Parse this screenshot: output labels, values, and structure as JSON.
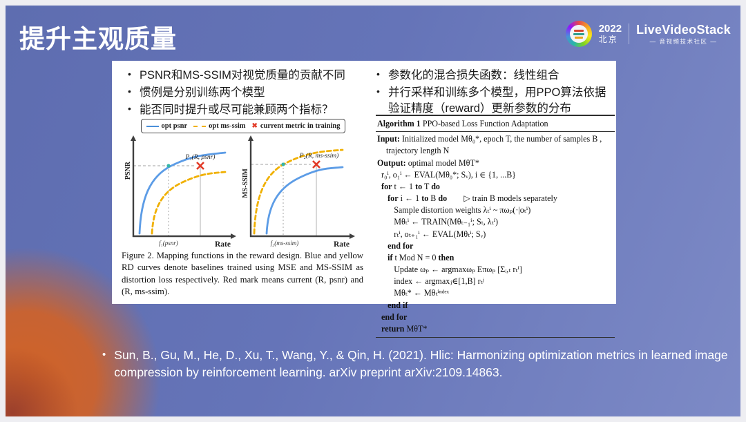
{
  "slide": {
    "title": "提升主观质量",
    "brand": {
      "year": "2022",
      "city": "北京",
      "wordmark": "LiveVideoStack",
      "tagline": "— 音视频技术社区 —"
    }
  },
  "left_panel": {
    "bullets": [
      "PSNR和MS-SSIM对视觉质量的贡献不同",
      "惯例是分别训练两个模型",
      "能否同时提升或尽可能兼顾两个指标？"
    ]
  },
  "right_panel": {
    "bullets": [
      "参数化的混合损失函数：线性组合",
      "并行采样和训练多个模型，用PPO算法依据验证精度（reward）更新参数的分布"
    ]
  },
  "figure": {
    "legend": {
      "opt_psnr": "opt psnr",
      "opt_ms_ssim": "opt ms-ssim",
      "current": "current metric in training"
    },
    "left_chart": {
      "ylabel": "PSNR",
      "xlabel": "Rate",
      "point_label": "P₁(R, psnr)",
      "tick_label": "f₁(psnr)"
    },
    "right_chart": {
      "ylabel": "MS-SSIM",
      "xlabel": "Rate",
      "point_label": "P₂(R, ms-ssim)",
      "tick_label": "f₂(ms-ssim)"
    },
    "caption": "Figure 2.  Mapping functions in the reward design. Blue and yellow RD curves denote baselines trained using MSE and MS-SSIM as distortion loss respectively. Red mark means current (R, psnr) and (R, ms-ssim).",
    "colors": {
      "blue_curve": "#5c9ce6",
      "yellow_curve": "#f0b000",
      "red_mark": "#e23b28",
      "teal_dot": "#35b5a9"
    },
    "chart_data": [
      {
        "type": "line",
        "title": "Reward mapping — PSNR vs Rate",
        "xlabel": "Rate",
        "ylabel": "PSNR",
        "series": [
          {
            "name": "opt psnr",
            "style": "solid blue",
            "shape": "concave rising, upper curve"
          },
          {
            "name": "opt ms-ssim",
            "style": "dashed yellow",
            "shape": "concave rising, lower curve"
          }
        ],
        "annotations": [
          "red cross at P₁(R, psnr)",
          "dashed guide to f₁(psnr) on Rate axis",
          "teal dot at intersection with blue curve"
        ],
        "axes_numeric": false
      },
      {
        "type": "line",
        "title": "Reward mapping — MS-SSIM vs Rate",
        "xlabel": "Rate",
        "ylabel": "MS-SSIM",
        "series": [
          {
            "name": "opt ms-ssim",
            "style": "dashed yellow",
            "shape": "concave rising, upper curve"
          },
          {
            "name": "opt psnr",
            "style": "solid blue",
            "shape": "concave rising, lower curve"
          }
        ],
        "annotations": [
          "red cross at P₂(R, ms-ssim)",
          "dashed guide to f₂(ms-ssim) on Rate axis",
          "teal dot at intersection with yellow curve"
        ],
        "axes_numeric": false
      }
    ]
  },
  "algorithm": {
    "title": "**Algorithm 1** PPO-based Loss Function Adaptation",
    "input": "**Input:** Initialized model Mθ₀*, epoch T, the number of samples B , trajectory length N",
    "output": "**Output:** optimal model MθT*",
    "lines": [
      "  r₀ⁱ, o₁ⁱ ← EVAL(Mθ₀*; Sᵥ), i ∈ {1, ...B}",
      "  **for** t ← 1 **to** T **do**",
      "     **for** i ← 1 **to** B **do**        ▷ train B models separately",
      "        Sample distortion weights λₜⁱ ~ πωₚ(·|oₜⁱ)",
      "        Mθₜⁱ ← TRAIN(Mθₜ₋₁ⁱ; Sₜ, λₜⁱ)",
      "        rₜⁱ, oₜ₊₁ⁱ ← EVAL(Mθₜⁱ; Sᵥ)",
      "     **end for**",
      "     **if** t Mod N = 0 **then**",
      "        Update ωₚ ← argmaxωₚ Eπωₚ [Σᵢ,ₜ rₜⁱ]",
      "        index ← argmaxⱼ∈[1,B] rₜʲ",
      "        Mθₜ* ← Mθₜⁱⁿᵈᵉˣ",
      "     **end if**",
      "  **end for**",
      "  **return** MθT*"
    ]
  },
  "citation": "Sun, B., Gu, M., He, D., Xu, T., Wang, Y., & Qin, H. (2021). Hlic: Harmonizing optimization metrics in learned image compression by reinforcement learning. arXiv preprint arXiv:2109.14863."
}
